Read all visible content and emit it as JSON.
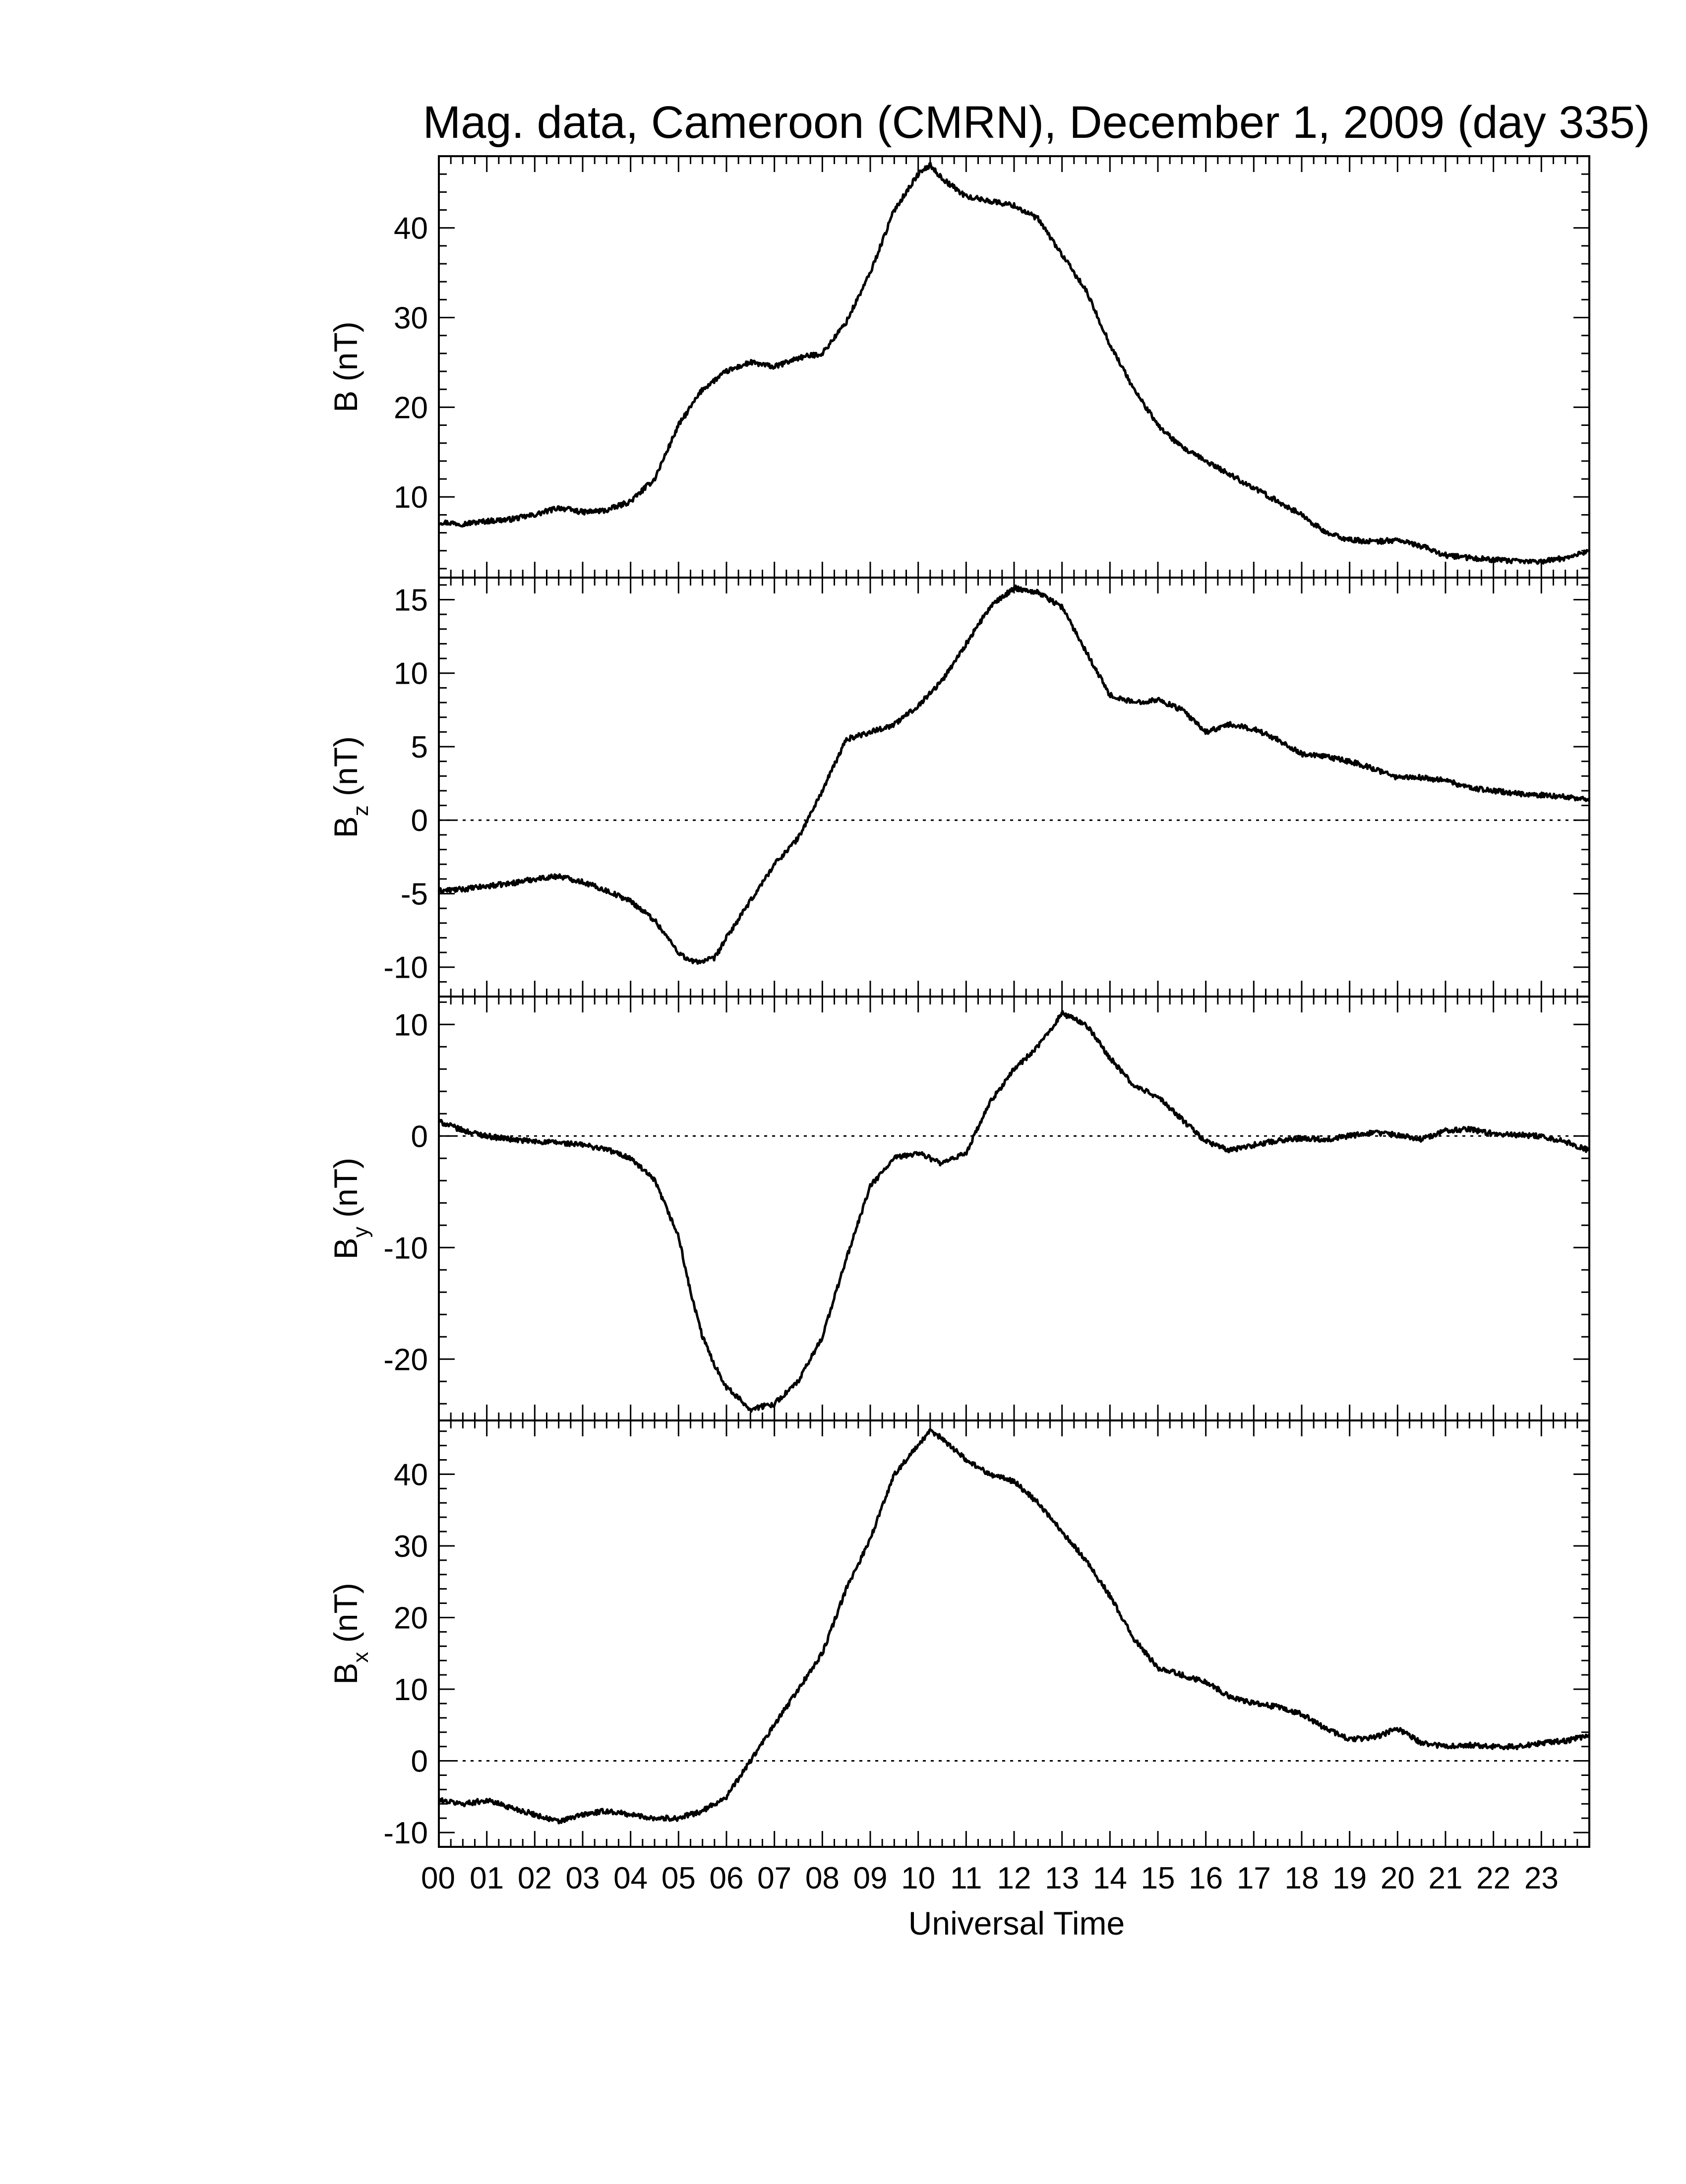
{
  "chart_data": {
    "type": "line",
    "title": "Mag. data, Cameroon (CMRN), December 1, 2009 (day 335)",
    "xlabel": "Universal Time",
    "x_tick_labels": [
      "00",
      "01",
      "02",
      "03",
      "04",
      "05",
      "06",
      "07",
      "08",
      "09",
      "10",
      "11",
      "12",
      "13",
      "14",
      "15",
      "16",
      "17",
      "18",
      "19",
      "20",
      "21",
      "22",
      "23"
    ],
    "x_unit": "hours UT",
    "xlim": [
      0,
      24
    ],
    "grid": false,
    "panels": [
      {
        "name": "B",
        "ylabel": "B",
        "ylabel_sub": "",
        "ylabel_unit": "(nT)",
        "ylim": [
          1,
          48
        ],
        "yticks": [
          10,
          20,
          30,
          40
        ],
        "zero_line": false,
        "x": [
          0,
          0.5,
          1,
          1.5,
          2,
          2.5,
          3,
          3.5,
          4,
          4.5,
          5,
          5.5,
          6,
          6.5,
          7,
          7.5,
          8,
          8.5,
          9,
          9.5,
          10,
          10.25,
          10.5,
          11,
          11.5,
          12,
          12.5,
          13,
          13.5,
          14,
          14.5,
          15,
          15.5,
          16,
          16.5,
          17,
          17.5,
          18,
          18.5,
          19,
          19.5,
          20,
          20.5,
          21,
          21.5,
          22,
          22.5,
          23,
          23.5,
          24
        ],
        "y": [
          7.2,
          7.0,
          7.3,
          7.5,
          8.0,
          8.8,
          8.3,
          8.5,
          9.5,
          12,
          18,
          22,
          24,
          25,
          24.5,
          25.5,
          26,
          29.5,
          35,
          42,
          46,
          47,
          45.5,
          43.5,
          43,
          42.5,
          41,
          37,
          33,
          27,
          22,
          18,
          15.5,
          14,
          12.5,
          11,
          9.5,
          8,
          6,
          5.2,
          5,
          5.2,
          4.5,
          3.5,
          3.2,
          3,
          2.8,
          2.8,
          3.2,
          4
        ]
      },
      {
        "name": "Bz",
        "ylabel": "B",
        "ylabel_sub": "z",
        "ylabel_unit": "(nT)",
        "ylim": [
          -12,
          16.5
        ],
        "yticks": [
          -10,
          -5,
          0,
          5,
          10,
          15
        ],
        "zero_line": true,
        "x": [
          0,
          0.5,
          1,
          1.5,
          2,
          2.5,
          3,
          3.5,
          4,
          4.5,
          5,
          5.25,
          5.5,
          5.75,
          6,
          6.5,
          7,
          7.5,
          8,
          8.5,
          9,
          9.5,
          10,
          10.5,
          11,
          11.5,
          12,
          12.5,
          13,
          13.5,
          14,
          14.5,
          15,
          15.5,
          16,
          16.5,
          17,
          17.5,
          18,
          18.5,
          19,
          19.5,
          20,
          20.5,
          21,
          21.5,
          22,
          22.5,
          23,
          23.5,
          24
        ],
        "y": [
          -4.8,
          -4.7,
          -4.5,
          -4.3,
          -4,
          -3.8,
          -4.2,
          -4.8,
          -5.5,
          -6.8,
          -9,
          -9.6,
          -9.6,
          -9.4,
          -8,
          -5.5,
          -3,
          -1.2,
          2,
          5.5,
          6,
          6.5,
          7.8,
          9.5,
          12,
          14.5,
          15.8,
          15.5,
          14.5,
          11.5,
          8.5,
          8,
          8.2,
          7.5,
          6,
          6.5,
          6.2,
          5.5,
          4.5,
          4.3,
          4,
          3.5,
          2.9,
          2.9,
          2.7,
          2.2,
          2,
          1.8,
          1.7,
          1.6,
          1.4
        ]
      },
      {
        "name": "By",
        "ylabel": "B",
        "ylabel_sub": "y",
        "ylabel_unit": "(nT)",
        "ylim": [
          -25.5,
          12.5
        ],
        "yticks": [
          -20,
          -10,
          0,
          10
        ],
        "zero_line": true,
        "x": [
          0,
          0.5,
          1,
          1.5,
          2,
          2.5,
          3,
          3.5,
          4,
          4.5,
          5,
          5.25,
          5.5,
          5.75,
          6,
          6.5,
          7,
          7.5,
          8,
          8.5,
          9,
          9.5,
          10,
          10.5,
          11,
          11.5,
          12,
          12.5,
          13,
          13.5,
          14,
          14.5,
          15,
          15.5,
          16,
          16.5,
          17,
          17.5,
          18,
          18.5,
          19,
          19.5,
          20,
          20.5,
          21,
          21.5,
          22,
          22.5,
          23,
          23.5,
          24
        ],
        "y": [
          1.3,
          0.5,
          0,
          -0.3,
          -0.5,
          -0.6,
          -0.8,
          -1.2,
          -2,
          -4,
          -9,
          -14,
          -18,
          -20.5,
          -22.5,
          -24.5,
          -24,
          -22,
          -18,
          -11,
          -4.5,
          -2,
          -1.5,
          -2.5,
          -1.5,
          3,
          6,
          8,
          11,
          10,
          7,
          4.5,
          3.5,
          1.5,
          -0.5,
          -1.3,
          -0.8,
          -0.4,
          -0.2,
          -0.3,
          0,
          0.3,
          0.1,
          -0.3,
          0.5,
          0.6,
          0.2,
          0.1,
          0,
          -0.5,
          -1.3
        ]
      },
      {
        "name": "Bx",
        "ylabel": "B",
        "ylabel_sub": "x",
        "ylabel_unit": "(nT)",
        "ylim": [
          -12,
          47.5
        ],
        "yticks": [
          -10,
          0,
          10,
          20,
          30,
          40
        ],
        "zero_line": true,
        "x": [
          0,
          0.5,
          1,
          1.5,
          2,
          2.5,
          3,
          3.5,
          4,
          4.5,
          5,
          5.5,
          6,
          6.5,
          7,
          7.5,
          8,
          8.5,
          9,
          9.5,
          10,
          10.25,
          10.5,
          11,
          11.5,
          12,
          12.5,
          13,
          13.5,
          14,
          14.5,
          15,
          15.5,
          16,
          16.5,
          17,
          17.5,
          18,
          18.5,
          19,
          19.5,
          20,
          20.5,
          21,
          21.5,
          22,
          22.5,
          23,
          23.5,
          24
        ],
        "y": [
          -5.5,
          -6,
          -5.5,
          -6.5,
          -7.5,
          -8.5,
          -7.5,
          -7,
          -7.5,
          -8,
          -8,
          -7,
          -5,
          0,
          5,
          10,
          15,
          24,
          31,
          40,
          44,
          46,
          45,
          42,
          40,
          39,
          36,
          32,
          28,
          23,
          17,
          13,
          12,
          11,
          9,
          8,
          7.5,
          6.5,
          4.5,
          3,
          3.2,
          4.5,
          2.5,
          2,
          2.2,
          2,
          2,
          2.5,
          2.8,
          3.5
        ]
      }
    ]
  }
}
